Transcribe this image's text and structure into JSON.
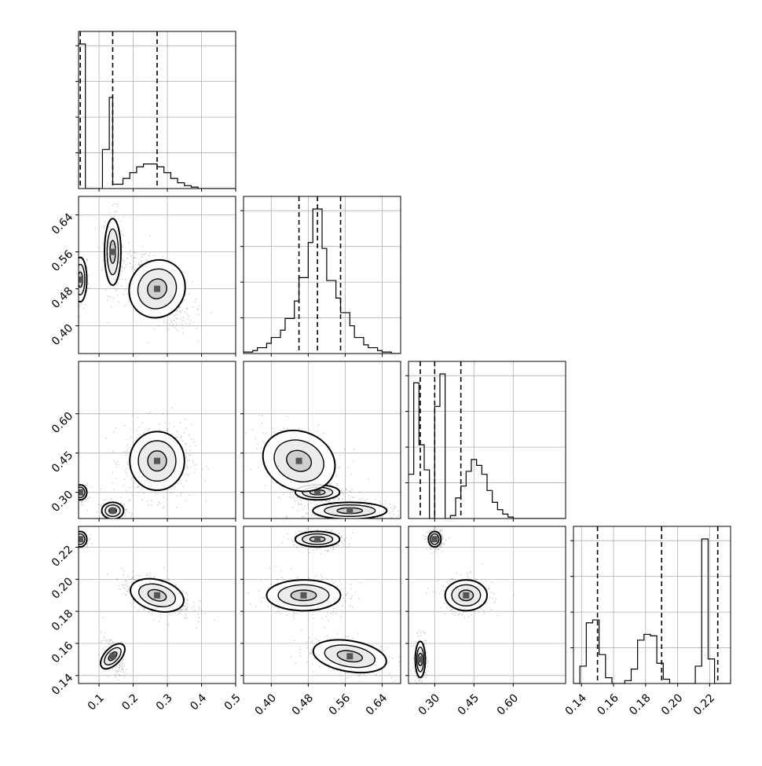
{
  "chart_data": {
    "type": "corner",
    "grid": true,
    "parameters": [
      {
        "range": [
          0.04,
          0.5
        ],
        "ticks": [
          "0.1",
          "0.2",
          "0.3",
          "0.4",
          "0.5"
        ],
        "tick_values": [
          0.1,
          0.2,
          0.3,
          0.4,
          0.5
        ]
      },
      {
        "range": [
          0.34,
          0.68
        ],
        "ticks": [
          "0.40",
          "0.48",
          "0.56",
          "0.64"
        ],
        "tick_values": [
          0.4,
          0.48,
          0.56,
          0.64
        ]
      },
      {
        "range": [
          0.2,
          0.8
        ],
        "ticks": [
          "0.30",
          "0.45",
          "0.60"
        ],
        "tick_values": [
          0.3,
          0.45,
          0.6
        ]
      },
      {
        "range": [
          0.135,
          0.233
        ],
        "ticks": [
          "0.14",
          "0.16",
          "0.18",
          "0.20",
          "0.22"
        ],
        "tick_values": [
          0.14,
          0.16,
          0.18,
          0.2,
          0.22
        ]
      }
    ],
    "histograms": [
      {
        "param": 0,
        "bins": [
          0.04,
          0.06,
          0.08,
          0.1,
          0.11,
          0.13,
          0.14,
          0.15,
          0.17,
          0.19,
          0.21,
          0.23,
          0.25,
          0.27,
          0.29,
          0.31,
          0.33,
          0.35,
          0.37,
          0.39,
          0.41,
          0.45,
          0.5
        ],
        "counts": [
          1.0,
          0.0,
          0.0,
          0.0,
          0.27,
          0.63,
          0.03,
          0.03,
          0.07,
          0.11,
          0.15,
          0.17,
          0.17,
          0.15,
          0.11,
          0.07,
          0.04,
          0.02,
          0.01,
          0.0,
          0.0,
          0.0
        ],
        "quantiles": [
          0.045,
          0.14,
          0.27
        ]
      },
      {
        "param": 1,
        "bins": [
          0.34,
          0.36,
          0.37,
          0.39,
          0.4,
          0.42,
          0.43,
          0.45,
          0.46,
          0.48,
          0.49,
          0.51,
          0.52,
          0.54,
          0.55,
          0.57,
          0.58,
          0.6,
          0.61,
          0.63,
          0.64,
          0.66,
          0.68
        ],
        "counts": [
          0.01,
          0.02,
          0.04,
          0.07,
          0.11,
          0.16,
          0.24,
          0.36,
          0.52,
          0.76,
          0.99,
          0.72,
          0.5,
          0.38,
          0.28,
          0.19,
          0.11,
          0.06,
          0.04,
          0.02,
          0.01,
          0.0
        ],
        "quantiles": [
          0.46,
          0.5,
          0.55
        ]
      },
      {
        "param": 2,
        "bins": [
          0.2,
          0.22,
          0.24,
          0.26,
          0.28,
          0.3,
          0.32,
          0.34,
          0.36,
          0.38,
          0.4,
          0.42,
          0.44,
          0.46,
          0.48,
          0.5,
          0.52,
          0.54,
          0.56,
          0.58,
          0.6,
          0.62,
          0.66,
          0.8
        ],
        "counts": [
          0.3,
          0.92,
          0.5,
          0.33,
          0.0,
          0.76,
          0.98,
          0.0,
          0.02,
          0.14,
          0.22,
          0.32,
          0.4,
          0.36,
          0.3,
          0.19,
          0.11,
          0.06,
          0.03,
          0.01,
          0.0,
          0.0,
          0.0
        ],
        "quantiles": [
          0.245,
          0.3,
          0.4
        ]
      },
      {
        "param": 3,
        "bins": [
          0.135,
          0.139,
          0.143,
          0.147,
          0.151,
          0.155,
          0.159,
          0.163,
          0.167,
          0.171,
          0.175,
          0.179,
          0.183,
          0.187,
          0.191,
          0.195,
          0.199,
          0.203,
          0.207,
          0.211,
          0.215,
          0.219,
          0.223,
          0.227,
          0.233
        ],
        "counts": [
          0.0,
          0.12,
          0.42,
          0.44,
          0.2,
          0.04,
          0.0,
          0.0,
          0.02,
          0.1,
          0.3,
          0.34,
          0.33,
          0.14,
          0.03,
          0.0,
          0.0,
          0.0,
          0.0,
          0.12,
          1.0,
          0.17,
          0.0,
          0.0
        ],
        "quantiles": [
          0.15,
          0.19,
          0.225
        ]
      }
    ],
    "scatter_panels": [
      {
        "x": 0,
        "y": 1,
        "blobs": [
          [
            0.045,
            0.5,
            0.012,
            0.03,
            0.0,
            0.16
          ],
          [
            0.14,
            0.56,
            0.015,
            0.045,
            0.0,
            0.2
          ],
          [
            0.27,
            0.48,
            0.05,
            0.04,
            -0.6,
            0.64
          ]
        ]
      },
      {
        "x": 0,
        "y": 2,
        "blobs": [
          [
            0.045,
            0.3,
            0.012,
            0.018,
            0.0,
            0.16
          ],
          [
            0.14,
            0.23,
            0.02,
            0.02,
            0.0,
            0.2
          ],
          [
            0.27,
            0.42,
            0.05,
            0.07,
            0.0,
            0.64
          ]
        ]
      },
      {
        "x": 0,
        "y": 3,
        "blobs": [
          [
            0.045,
            0.225,
            0.012,
            0.003,
            0.0,
            0.16
          ],
          [
            0.14,
            0.152,
            0.015,
            0.006,
            -0.5,
            0.2
          ],
          [
            0.27,
            0.19,
            0.05,
            0.006,
            -0.5,
            0.64
          ]
        ]
      },
      {
        "x": 1,
        "y": 2,
        "blobs": [
          [
            0.5,
            0.3,
            0.03,
            0.018,
            0.0,
            0.34
          ],
          [
            0.46,
            0.42,
            0.05,
            0.07,
            -0.5,
            0.33
          ],
          [
            0.57,
            0.23,
            0.05,
            0.02,
            0.0,
            0.33
          ]
        ]
      },
      {
        "x": 1,
        "y": 3,
        "blobs": [
          [
            0.5,
            0.225,
            0.03,
            0.003,
            0.0,
            0.34
          ],
          [
            0.47,
            0.19,
            0.05,
            0.006,
            0.0,
            0.33
          ],
          [
            0.57,
            0.152,
            0.05,
            0.006,
            -0.4,
            0.33
          ]
        ]
      },
      {
        "x": 2,
        "y": 3,
        "blobs": [
          [
            0.3,
            0.225,
            0.015,
            0.003,
            0.0,
            0.3
          ],
          [
            0.42,
            0.19,
            0.05,
            0.006,
            0.0,
            0.35
          ],
          [
            0.245,
            0.15,
            0.012,
            0.007,
            0.0,
            0.35
          ]
        ]
      }
    ]
  }
}
